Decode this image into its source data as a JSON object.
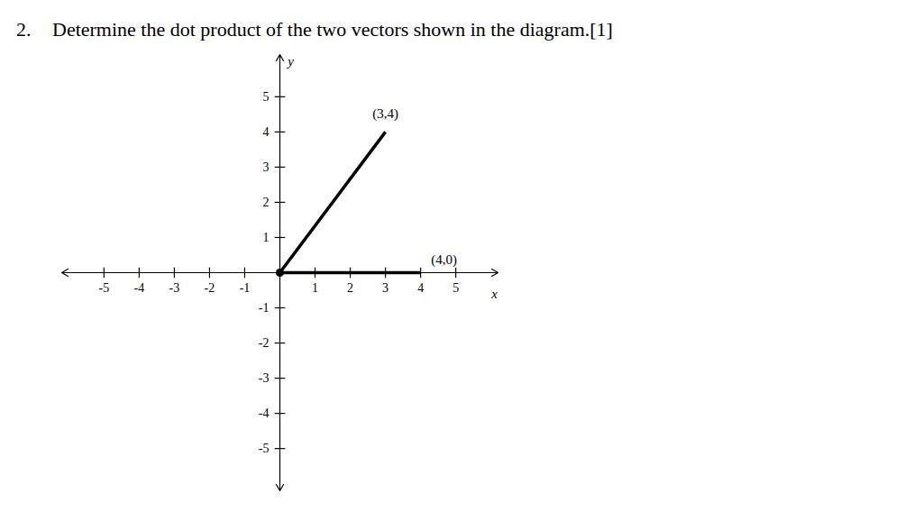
{
  "question": {
    "number": "2.",
    "text": "Determine the dot product of the two vectors shown in the diagram.[1]"
  },
  "chart_data": {
    "type": "vector",
    "x_label": "x",
    "y_label": "y",
    "xlim": [
      -6.2,
      6.2
    ],
    "ylim": [
      -6.2,
      6.2
    ],
    "xticks": [
      -5,
      -4,
      -3,
      -2,
      -1,
      1,
      2,
      3,
      4,
      5
    ],
    "yticks": [
      -5,
      -4,
      -3,
      -2,
      -1,
      1,
      2,
      3,
      4,
      5
    ],
    "color": "#000000",
    "vectors": [
      {
        "x": 3,
        "y": 4,
        "label": "(3,4)"
      },
      {
        "x": 4,
        "y": 0,
        "label": "(4,0)"
      }
    ]
  }
}
